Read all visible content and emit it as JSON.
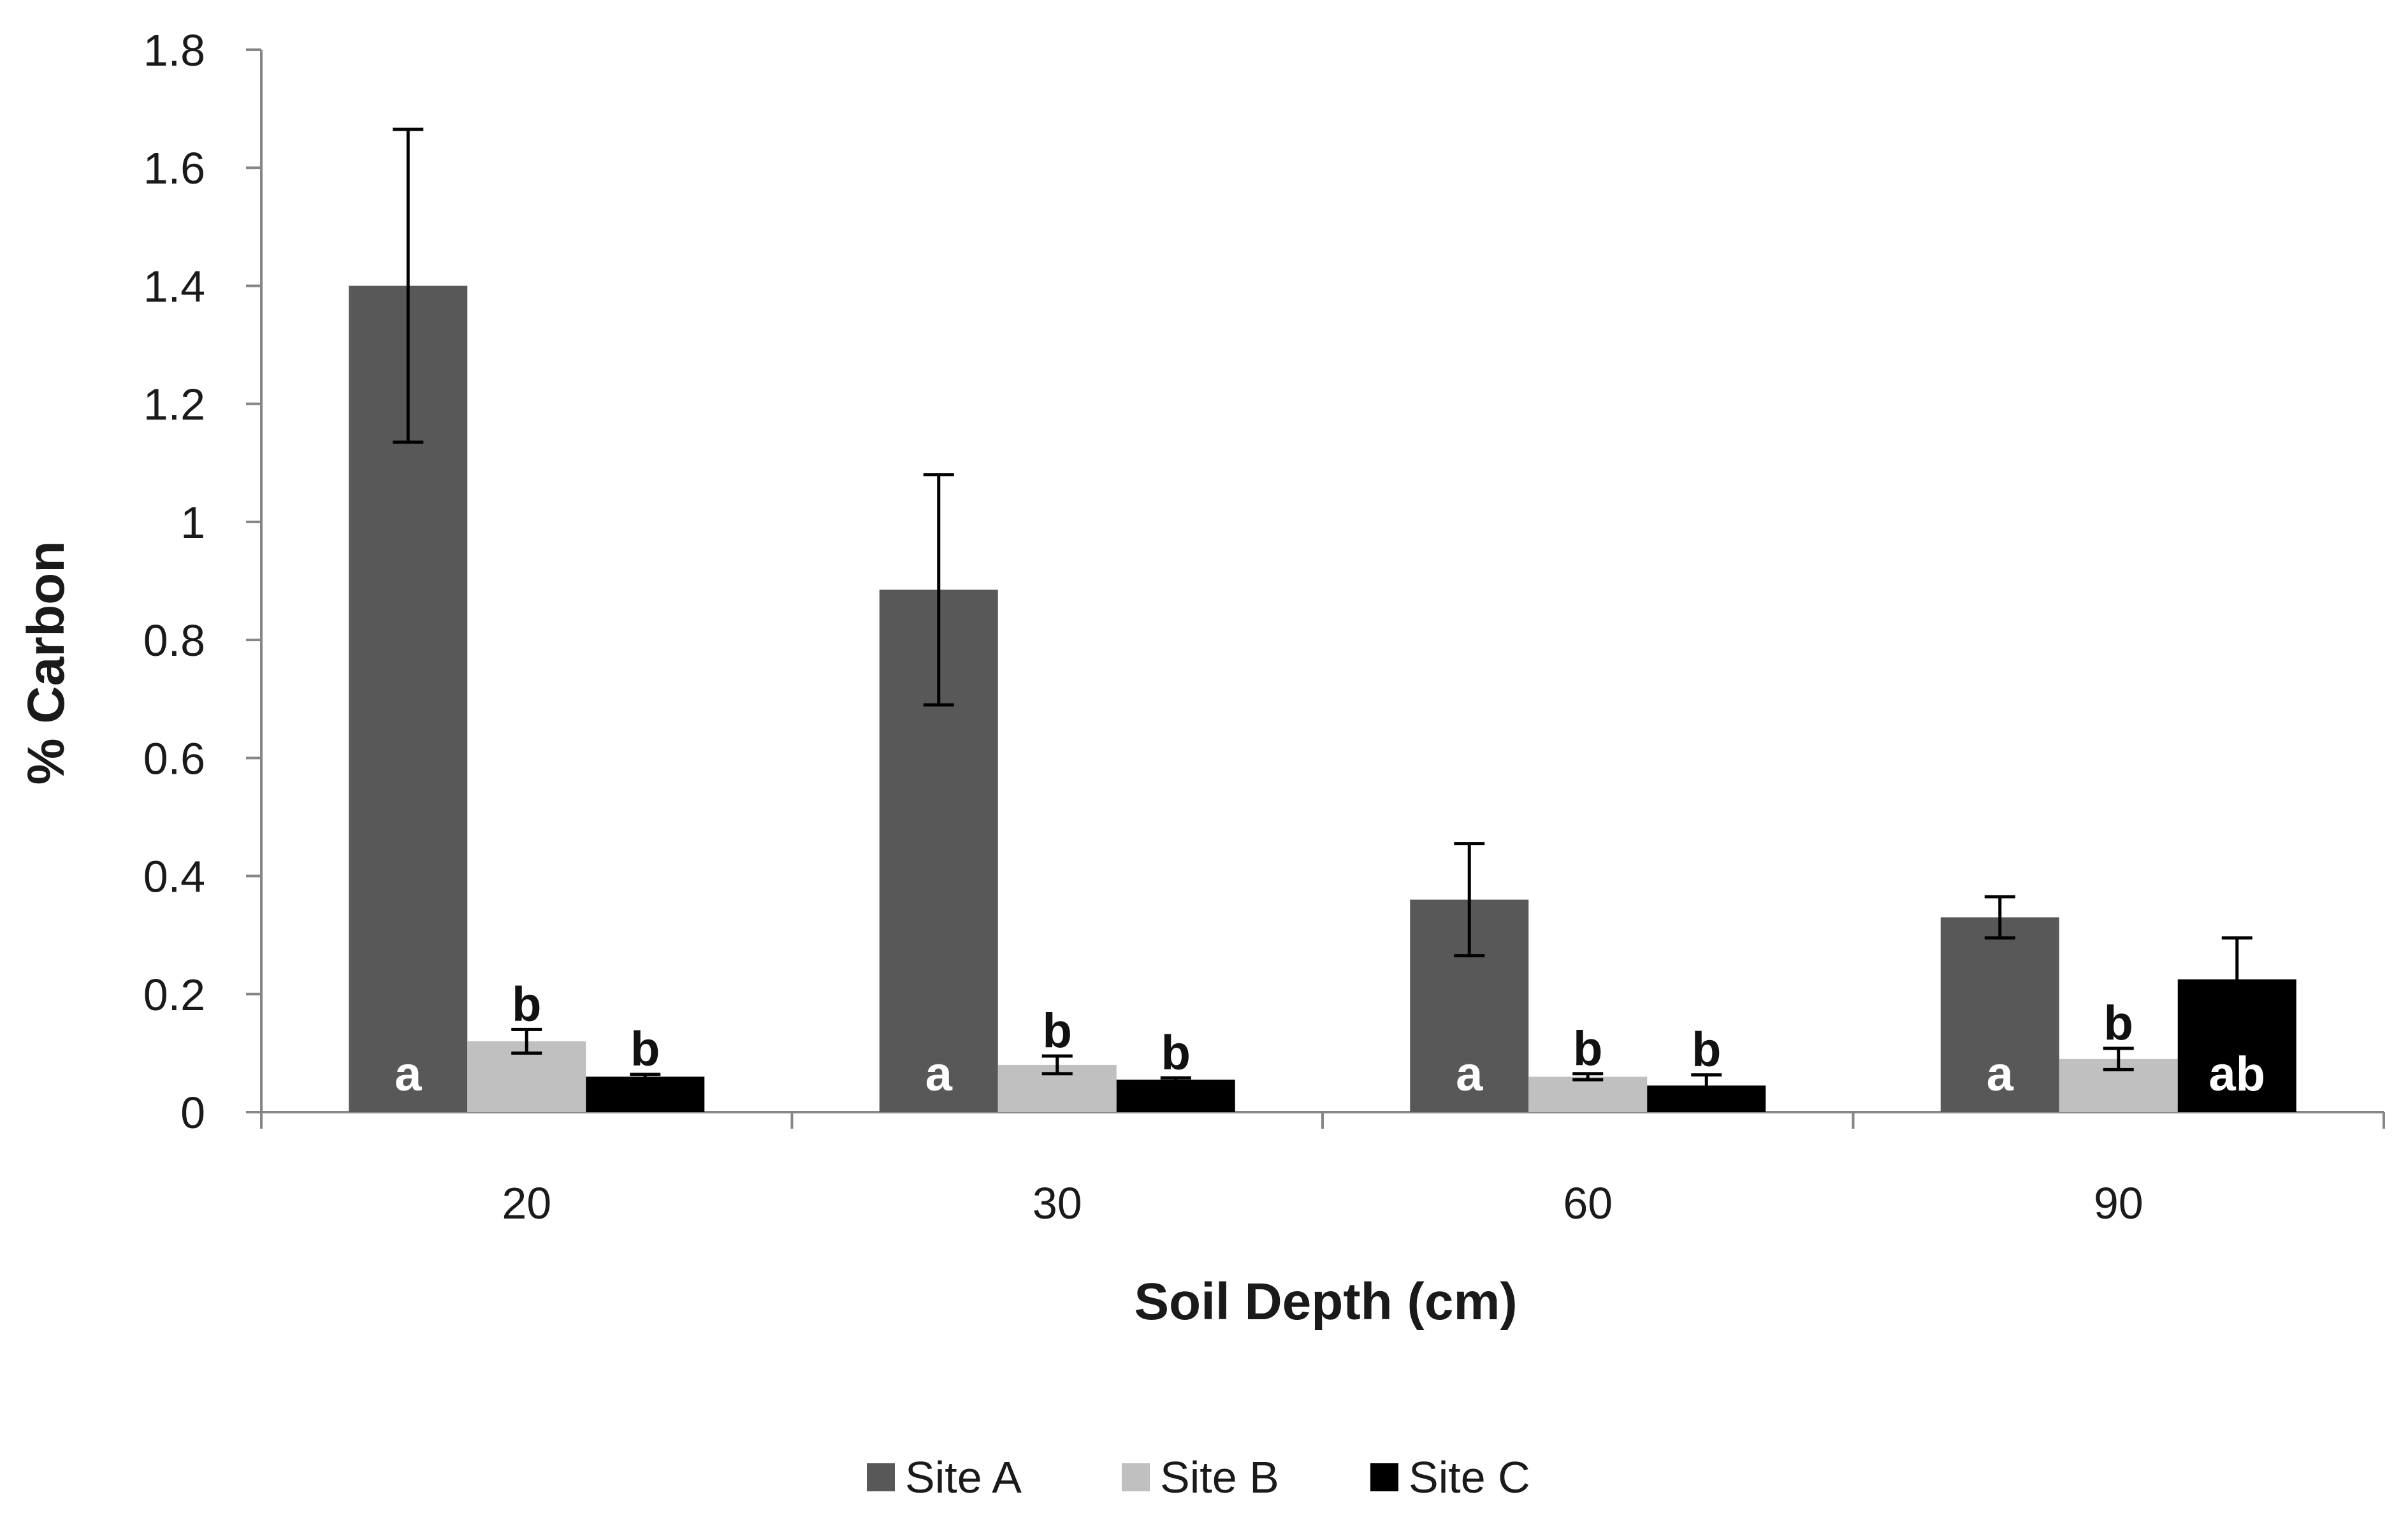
{
  "chart_data": {
    "type": "bar",
    "title": "",
    "xlabel": "Soil Depth (cm)",
    "ylabel": "% Carbon",
    "ylim": [
      0,
      1.8
    ],
    "yticks": [
      "0",
      "0.2",
      "0.4",
      "0.6",
      "0.8",
      "1",
      "1.2",
      "1.4",
      "1.6",
      "1.8"
    ],
    "categories": [
      "20",
      "30",
      "60",
      "90"
    ],
    "grid": false,
    "legend_position": "bottom",
    "series": [
      {
        "name": "Site A",
        "color": "#585858",
        "values": [
          1.4,
          0.885,
          0.36,
          0.33
        ],
        "errors": [
          0.265,
          0.195,
          0.095,
          0.035
        ],
        "letters": [
          "a",
          "a",
          "a",
          "a"
        ],
        "letter_placement": "inside",
        "letter_color": "#ffffff"
      },
      {
        "name": "Site B",
        "color": "#c0c0c0",
        "values": [
          0.12,
          0.08,
          0.06,
          0.09
        ],
        "errors": [
          0.02,
          0.015,
          0.005,
          0.018
        ],
        "letters": [
          "b",
          "b",
          "b",
          "b"
        ],
        "letter_placement": "above",
        "letter_color": "#111111"
      },
      {
        "name": "Site C",
        "color": "#000000",
        "values": [
          0.06,
          0.055,
          0.045,
          0.225
        ],
        "errors": [
          0.004,
          0.003,
          0.018,
          0.07
        ],
        "letters": [
          "b",
          "b",
          "b",
          "ab"
        ],
        "letter_placement": "above",
        "letter_color": "#111111"
      }
    ]
  }
}
